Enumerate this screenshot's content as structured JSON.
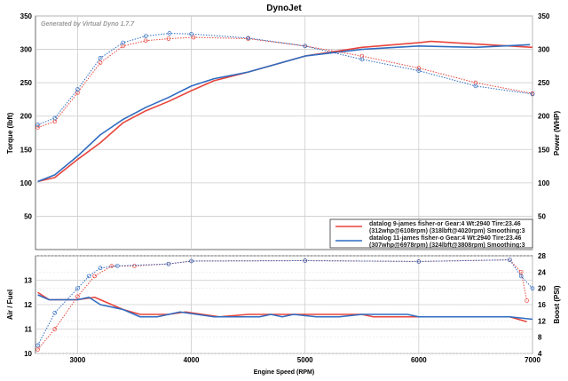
{
  "chart_data": [
    {
      "type": "line",
      "title": "DynoJet",
      "watermark": "Generated by Virtual Dyno 1.7.7",
      "xlabel": "Engine Speed (RPM)",
      "ylabel": "Torque (lbft)",
      "y2label": "Power (WHP)",
      "xlim": [
        2630,
        7000
      ],
      "ylim": [
        0,
        350
      ],
      "y2lim": [
        0,
        350
      ],
      "yticks": [
        50,
        100,
        150,
        200,
        250,
        300,
        350
      ],
      "grid": true,
      "legend_position": "bottom-right",
      "legend": [
        {
          "line1": "datalog 9-james fisher-or Gear:4 Wt:2940 Tire:23.46",
          "line2": "(312whp@6108rpm) (318lbft@4020rpm) Smoothing:3",
          "color": "#e8453c"
        },
        {
          "line1": "datalog 11-james fisher-o Gear:4 Wt:2940 Tire:23.46",
          "line2": "(307whp@6978rpm) (324lbft@3808rpm) Smoothing:3",
          "color": "#2f6cc0"
        }
      ],
      "series": [
        {
          "name": "datalog 9 power (WHP)",
          "color": "#e8453c",
          "style": "solid",
          "x": [
            2650,
            2800,
            3000,
            3200,
            3400,
            3600,
            3800,
            4000,
            4200,
            4500,
            5000,
            5500,
            6000,
            6108,
            6500,
            7000
          ],
          "y": [
            102,
            108,
            135,
            160,
            190,
            208,
            222,
            238,
            253,
            266,
            290,
            303,
            310,
            312,
            308,
            303
          ]
        },
        {
          "name": "datalog 11 power (WHP)",
          "color": "#2f6cc0",
          "style": "solid",
          "x": [
            2650,
            2800,
            3000,
            3200,
            3400,
            3600,
            3800,
            4000,
            4200,
            4500,
            5000,
            5500,
            6000,
            6500,
            6978
          ],
          "y": [
            102,
            112,
            140,
            172,
            195,
            213,
            228,
            245,
            256,
            266,
            290,
            300,
            305,
            303,
            307
          ]
        },
        {
          "name": "datalog 9 torque (lbft)",
          "color": "#e8453c",
          "style": "dotted",
          "x": [
            2650,
            2800,
            3000,
            3200,
            3400,
            3600,
            3800,
            4020,
            4500,
            5000,
            5500,
            6000,
            6500,
            7000
          ],
          "y": [
            183,
            192,
            235,
            280,
            305,
            313,
            316,
            318,
            316,
            305,
            290,
            272,
            250,
            234
          ]
        },
        {
          "name": "datalog 11 torque (lbft)",
          "color": "#2f6cc0",
          "style": "dotted",
          "x": [
            2650,
            2800,
            3000,
            3200,
            3400,
            3600,
            3808,
            4000,
            4500,
            5000,
            5500,
            6000,
            6500,
            7000
          ],
          "y": [
            187,
            197,
            240,
            287,
            310,
            320,
            324,
            323,
            317,
            305,
            285,
            268,
            245,
            233
          ]
        }
      ]
    },
    {
      "type": "line",
      "xlabel": "Engine Speed (RPM)",
      "ylabel": "Air / Fuel",
      "y2label": "Boost (PSI)",
      "xlim": [
        2630,
        7000
      ],
      "ylim": [
        10,
        14
      ],
      "y2lim": [
        4,
        28
      ],
      "xticks": [
        3000,
        4000,
        5000,
        6000,
        7000
      ],
      "yticks": [
        10,
        11,
        12,
        13
      ],
      "y2ticks": [
        4,
        8,
        12,
        16,
        20,
        24,
        28
      ],
      "series": [
        {
          "name": "datalog 9 AFR",
          "color": "#e8453c",
          "style": "solid",
          "axis": "left",
          "x": [
            2650,
            2750,
            3000,
            3150,
            3400,
            3550,
            3800,
            3950,
            4100,
            4250,
            4500,
            5000,
            5500,
            5600,
            6000,
            6800,
            6950
          ],
          "y": [
            12.5,
            12.2,
            12.2,
            12.3,
            11.8,
            11.6,
            11.6,
            11.7,
            11.6,
            11.5,
            11.6,
            11.6,
            11.6,
            11.5,
            11.5,
            11.5,
            11.3
          ]
        },
        {
          "name": "datalog 11 AFR",
          "color": "#2f6cc0",
          "style": "solid",
          "axis": "left",
          "x": [
            2650,
            2750,
            3000,
            3100,
            3200,
            3400,
            3550,
            3700,
            3900,
            4200,
            4600,
            4700,
            4800,
            4900,
            5100,
            5300,
            5500,
            5900,
            6000,
            6800,
            7000
          ],
          "y": [
            12.4,
            12.2,
            12.2,
            12.3,
            12.0,
            11.8,
            11.5,
            11.5,
            11.7,
            11.5,
            11.5,
            11.6,
            11.5,
            11.6,
            11.5,
            11.5,
            11.6,
            11.6,
            11.5,
            11.5,
            11.4
          ]
        },
        {
          "name": "datalog 9 boost",
          "color": "#e8453c",
          "style": "dotted",
          "axis": "right",
          "x": [
            2650,
            2800,
            3000,
            3150,
            3300,
            3500,
            3800,
            4000,
            5000,
            6000,
            6800,
            6900,
            6950
          ],
          "y": [
            5,
            10,
            18,
            23,
            25.5,
            25.5,
            26,
            26.7,
            26.8,
            26.6,
            27,
            24,
            17
          ]
        },
        {
          "name": "datalog 11 boost",
          "color": "#2f6cc0",
          "style": "dotted",
          "axis": "right",
          "x": [
            2650,
            2800,
            3000,
            3100,
            3200,
            3350,
            3800,
            4000,
            5000,
            6000,
            6800,
            6900,
            7000
          ],
          "y": [
            6,
            14,
            20,
            23,
            25,
            25.5,
            26,
            26.7,
            26.8,
            26.6,
            27,
            23,
            20
          ]
        }
      ]
    }
  ]
}
